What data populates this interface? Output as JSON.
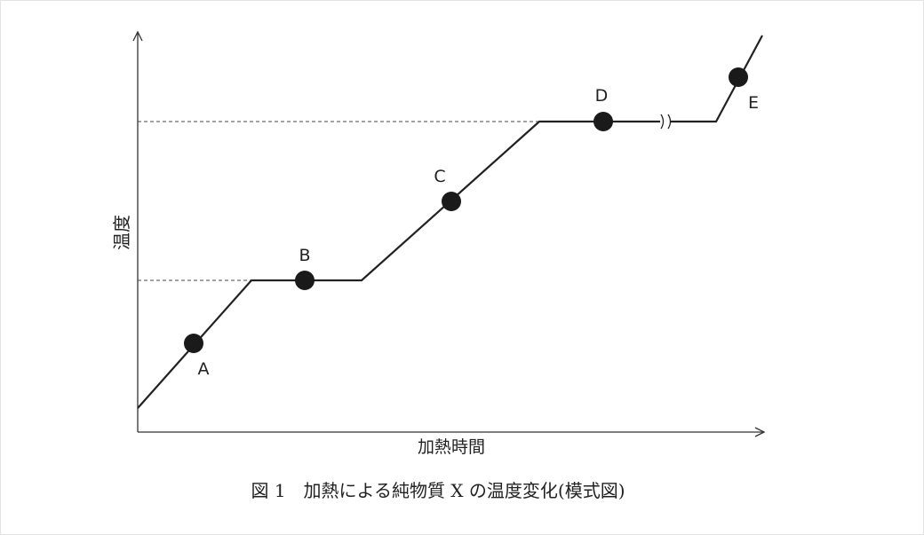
{
  "axes": {
    "y_label": "温度",
    "x_label": "加熱時間"
  },
  "points": [
    {
      "label": "A"
    },
    {
      "label": "B"
    },
    {
      "label": "C"
    },
    {
      "label": "D"
    },
    {
      "label": "E"
    }
  ],
  "caption": "図 1　加熱による純物質 X の温度変化(模式図)"
}
